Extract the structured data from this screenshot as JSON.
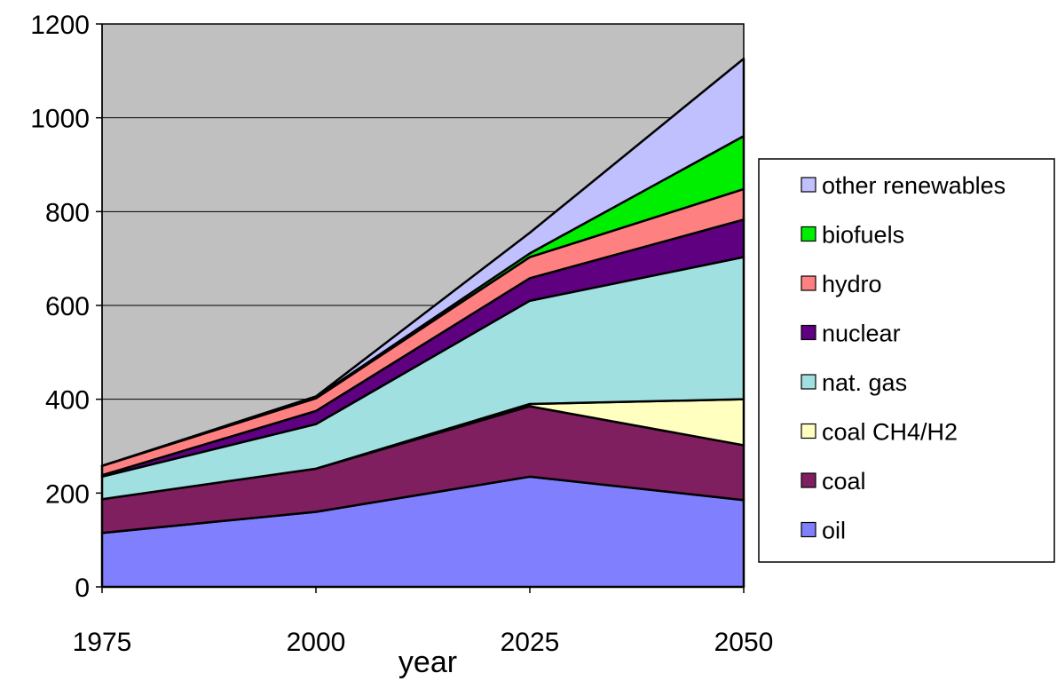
{
  "chart_data": {
    "type": "area",
    "stacked": true,
    "x": [
      1975,
      2000,
      2025,
      2050
    ],
    "xlabel": "year",
    "ylabel": "",
    "title": "",
    "ylim": [
      0,
      1200
    ],
    "yticks": [
      0,
      200,
      400,
      600,
      800,
      1000,
      1200
    ],
    "grid": "horizontal",
    "plot_background": "#c0c0c0",
    "legend_position": "right",
    "series": [
      {
        "name": "oil",
        "color": "#8080ff",
        "values": [
          115,
          160,
          235,
          185
        ]
      },
      {
        "name": "coal",
        "color": "#7f1f5f",
        "values": [
          72,
          92,
          150,
          117
        ]
      },
      {
        "name": "coal CH4/H2",
        "color": "#ffffc0",
        "values": [
          0,
          0,
          5,
          98
        ]
      },
      {
        "name": "nat. gas",
        "color": "#a0e0e0",
        "values": [
          48,
          95,
          220,
          303
        ]
      },
      {
        "name": "nuclear",
        "color": "#5f0080",
        "values": [
          3,
          28,
          48,
          80
        ]
      },
      {
        "name": "hydro",
        "color": "#ff8080",
        "values": [
          20,
          27,
          45,
          65
        ]
      },
      {
        "name": "biofuels",
        "color": "#00ee00",
        "values": [
          0,
          2,
          8,
          113
        ]
      },
      {
        "name": "other renewables",
        "color": "#c0c0ff",
        "values": [
          0,
          2,
          44,
          165
        ]
      }
    ]
  }
}
